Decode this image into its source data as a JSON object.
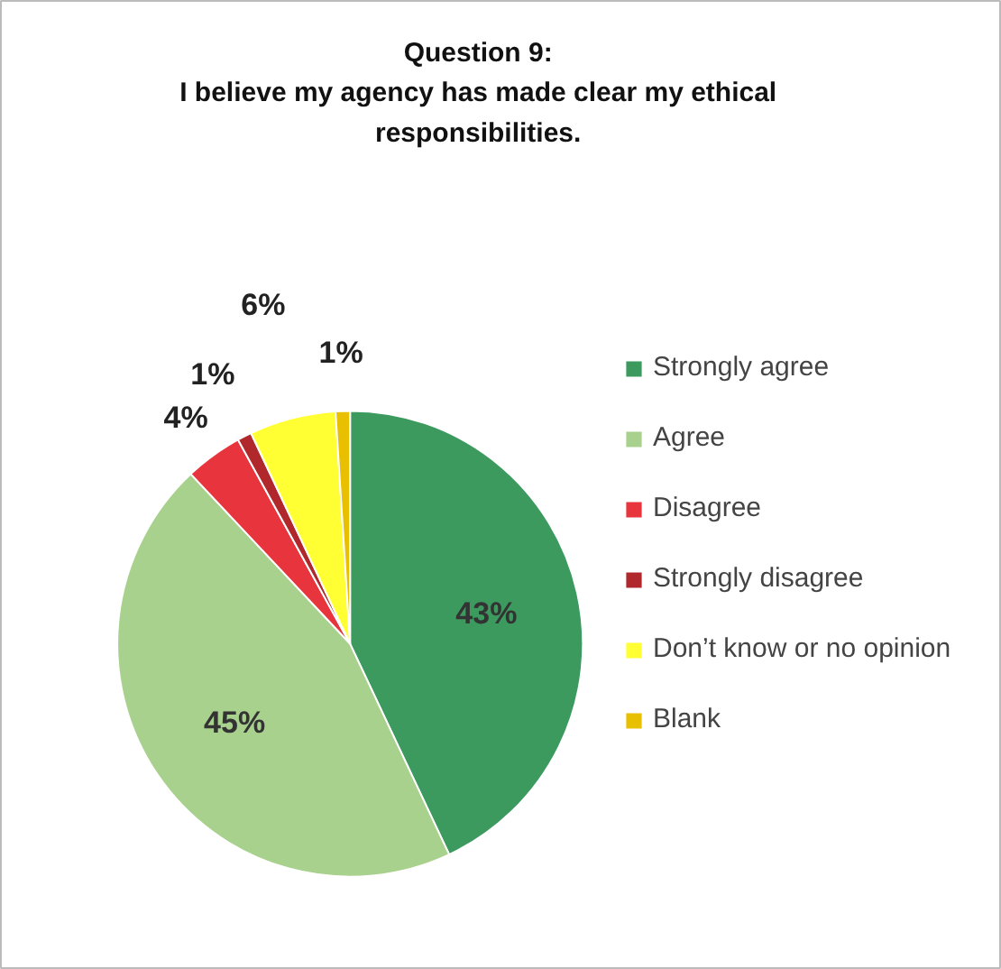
{
  "chart_data": {
    "type": "pie",
    "title": "Question 9:\nI believe my agency has made clear my ethical\nresponsibilities.",
    "categories": [
      "Strongly agree",
      "Agree",
      "Disagree",
      "Strongly disagree",
      "Don’t know or no opinion",
      "Blank"
    ],
    "values": [
      43,
      45,
      4,
      1,
      6,
      1
    ],
    "colors": [
      "#3c9a5f",
      "#a9d18e",
      "#e8343c",
      "#b0282c",
      "#ffff33",
      "#e8c000"
    ],
    "value_labels": [
      "43%",
      "45%",
      "4%",
      "1%",
      "6%",
      "1%"
    ],
    "legend": "right"
  }
}
